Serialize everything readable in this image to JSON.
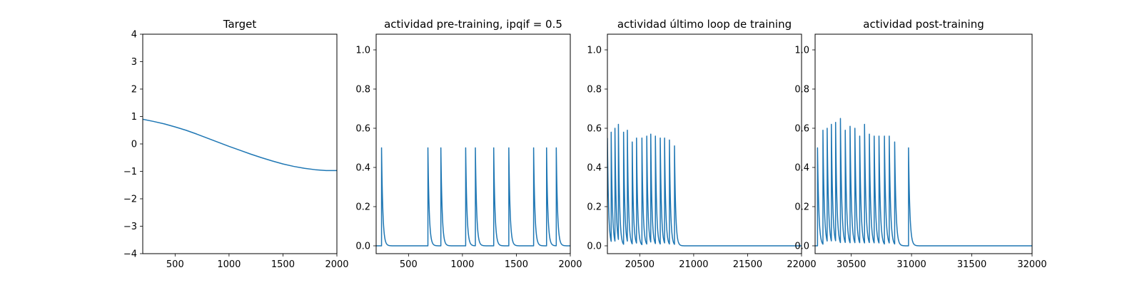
{
  "chart_data": [
    {
      "type": "line",
      "title": "Target",
      "xlim": [
        200,
        2000
      ],
      "ylim": [
        -4,
        4
      ],
      "xticks": [
        500,
        1000,
        1500,
        2000
      ],
      "yticks": [
        -4,
        -3,
        -2,
        -1,
        0,
        1,
        2,
        3,
        4
      ],
      "series": [
        {
          "color": "#1f77b4",
          "x": [
            200,
            300,
            400,
            500,
            600,
            700,
            800,
            900,
            1000,
            1100,
            1200,
            1300,
            1400,
            1500,
            1600,
            1700,
            1800,
            1900,
            2000
          ],
          "y": [
            0.9,
            0.82,
            0.73,
            0.62,
            0.5,
            0.36,
            0.21,
            0.06,
            -0.09,
            -0.23,
            -0.37,
            -0.5,
            -0.62,
            -0.73,
            -0.82,
            -0.89,
            -0.94,
            -0.97,
            -0.97
          ]
        }
      ]
    },
    {
      "type": "line",
      "title": "actividad pre-training, ipqif = 0.5",
      "xlim": [
        200,
        2000
      ],
      "ylim": [
        -0.04,
        1.08
      ],
      "xticks": [
        500,
        1000,
        1500,
        2000
      ],
      "yticks": [
        0.0,
        0.2,
        0.4,
        0.6,
        0.8,
        1.0
      ],
      "spike_series": {
        "color": "#1f77b4",
        "x_start": 200,
        "x_end": 2000,
        "baseline": 0.0,
        "decay_tau": 12,
        "peak_times": [
          250,
          680,
          800,
          1030,
          1120,
          1290,
          1430,
          1660,
          1780,
          1870
        ],
        "peak_values": [
          0.5,
          0.5,
          0.5,
          0.5,
          0.5,
          0.5,
          0.5,
          0.5,
          0.5,
          0.5
        ]
      }
    },
    {
      "type": "line",
      "title": "actividad último loop de training",
      "xlim": [
        20200,
        22000
      ],
      "ylim": [
        -0.04,
        1.08
      ],
      "xticks": [
        20500,
        21000,
        21500,
        22000
      ],
      "yticks": [
        0.0,
        0.2,
        0.4,
        0.6,
        0.8,
        1.0
      ],
      "spike_series": {
        "color": "#1f77b4",
        "x_start": 20200,
        "x_end": 22000,
        "baseline": 0.0,
        "decay_tau": 11,
        "initial_value": 0.55,
        "peak_times": [
          20235,
          20270,
          20302,
          20350,
          20385,
          20430,
          20470,
          20520,
          20565,
          20602,
          20645,
          20690,
          20730,
          20775,
          20822
        ],
        "peak_values": [
          0.58,
          0.6,
          0.62,
          0.58,
          0.59,
          0.53,
          0.55,
          0.55,
          0.56,
          0.57,
          0.56,
          0.55,
          0.55,
          0.54,
          0.51
        ]
      }
    },
    {
      "type": "line",
      "title": "actividad post-training",
      "xlim": [
        30200,
        32000
      ],
      "ylim": [
        -0.04,
        1.08
      ],
      "xticks": [
        30500,
        31000,
        31500,
        32000
      ],
      "yticks": [
        0.0,
        0.2,
        0.4,
        0.6,
        0.8,
        1.0
      ],
      "spike_series": {
        "color": "#1f77b4",
        "x_start": 30200,
        "x_end": 32000,
        "baseline": 0.0,
        "decay_tau": 11,
        "peak_times": [
          30220,
          30265,
          30300,
          30335,
          30370,
          30410,
          30450,
          30490,
          30530,
          30570,
          30610,
          30650,
          30690,
          30730,
          30775,
          30815,
          30860,
          30975
        ],
        "peak_values": [
          0.5,
          0.59,
          0.6,
          0.62,
          0.63,
          0.65,
          0.59,
          0.61,
          0.6,
          0.56,
          0.62,
          0.57,
          0.56,
          0.56,
          0.56,
          0.56,
          0.53,
          0.5
        ]
      }
    }
  ]
}
